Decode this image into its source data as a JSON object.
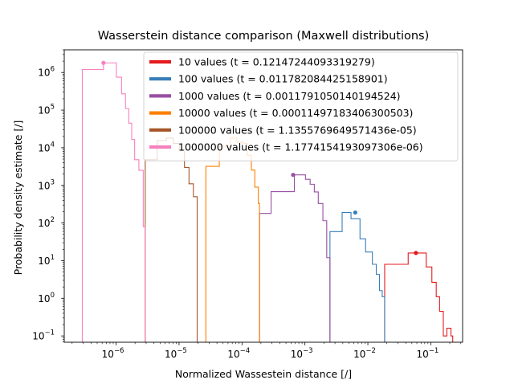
{
  "chart_data": {
    "type": "histogram-step",
    "title": "Wasserstein distance comparison (Maxwell distributions)",
    "xlabel": "Normalized Wassestein distance [/]",
    "ylabel": "Probability density estimate [/]",
    "xscale": "log",
    "yscale": "log",
    "xlim": [
      1.5e-07,
      0.32
    ],
    "ylim": [
      0.068,
      4000000
    ],
    "x_ticks": [
      {
        "value": 1e-06,
        "base": "10",
        "exp": "−6"
      },
      {
        "value": 1e-05,
        "base": "10",
        "exp": "−5"
      },
      {
        "value": 0.0001,
        "base": "10",
        "exp": "−4"
      },
      {
        "value": 0.001,
        "base": "10",
        "exp": "−3"
      },
      {
        "value": 0.01,
        "base": "10",
        "exp": "−2"
      },
      {
        "value": 0.1,
        "base": "10",
        "exp": "−1"
      }
    ],
    "y_ticks": [
      {
        "value": 0.1,
        "base": "10",
        "exp": "−1"
      },
      {
        "value": 1,
        "base": "10",
        "exp": "0"
      },
      {
        "value": 10,
        "base": "10",
        "exp": "1"
      },
      {
        "value": 100,
        "base": "10",
        "exp": "2"
      },
      {
        "value": 1000,
        "base": "10",
        "exp": "3"
      },
      {
        "value": 10000,
        "base": "10",
        "exp": "4"
      },
      {
        "value": 100000,
        "base": "10",
        "exp": "5"
      },
      {
        "value": 1000000,
        "base": "10",
        "exp": "6"
      }
    ],
    "legend_position": "upper right",
    "series": [
      {
        "name": "10 values (t = 0.12147244093319279)",
        "color": "#e41a1c",
        "edges": [
          0.0185,
          0.0297,
          0.0437,
          0.0669,
          0.0845,
          0.104,
          0.122,
          0.138,
          0.158,
          0.18,
          0.191,
          0.209,
          0.223
        ],
        "heights": [
          8,
          8,
          16,
          16,
          6.8,
          2.65,
          1.1,
          0.45,
          0.1,
          0.16,
          0.16,
          0.1
        ],
        "marker": [
          0.058,
          16
        ]
      },
      {
        "name": "100 values (t = 0.011782084425158901)",
        "color": "#377eb8",
        "edges": [
          0.0025,
          0.0039,
          0.0054,
          0.0075,
          0.0092,
          0.0118,
          0.0136,
          0.0153,
          0.0169,
          0.0185
        ],
        "heights": [
          59,
          190,
          130,
          38,
          17,
          8,
          4.3,
          1.6,
          1.1
        ],
        "marker": [
          0.0063,
          190
        ]
      },
      {
        "name": "1000 values (t = 0.0011791050140194524)",
        "color": "#984ea3",
        "edges": [
          0.00019,
          0.00029,
          0.00052,
          0.00068,
          0.00083,
          0.00102,
          0.00121,
          0.00141,
          0.00163,
          0.00193,
          0.00222,
          0.0025
        ],
        "heights": [
          180,
          680,
          680,
          1900,
          1900,
          1450,
          1070,
          670,
          330,
          115,
          12
        ],
        "marker": [
          0.00065,
          1900
        ]
      },
      {
        "name": "10000 values (t = 0.00011497183406300503)",
        "color": "#ff7f00",
        "edges": [
          2.67e-05,
          4.36e-05,
          6.55e-05,
          8.33e-05,
          0.000104,
          0.000121,
          0.000141,
          0.00016,
          0.000182,
          0.00019
        ],
        "heights": [
          3200,
          11000,
          18000,
          14000,
          13000,
          6300,
          2550,
          900,
          330
        ],
        "marker": null
      },
      {
        "name": "100000 values (t = 1.1355769649571436e-05)",
        "color": "#a65628",
        "edges": [
          2.9e-06,
          4.5e-06,
          6.3e-06,
          8.1e-06,
          1.01e-05,
          1.22e-05,
          1.44e-05,
          1.69e-05,
          1.94e-05
        ],
        "heights": [
          4800,
          15500,
          18000,
          13000,
          9000,
          3000,
          1100,
          500
        ],
        "marker": null
      },
      {
        "name": "1000000 values (t = 1.1774154193097306e-06)",
        "color": "#f781bf",
        "edges": [
          2.9e-07,
          4.5e-07,
          6.3e-07,
          8.1e-07,
          1.01e-06,
          1.22e-06,
          1.41e-06,
          1.59e-06,
          1.77e-06,
          1.97e-06,
          2.3e-06,
          2.7e-06,
          2.9e-06
        ],
        "heights": [
          1200000,
          1200000,
          1800000,
          1800000,
          750000,
          270000,
          110000,
          45000,
          16500,
          4800,
          2500,
          80
        ],
        "marker": [
          6.3e-07,
          1800000
        ]
      }
    ]
  }
}
